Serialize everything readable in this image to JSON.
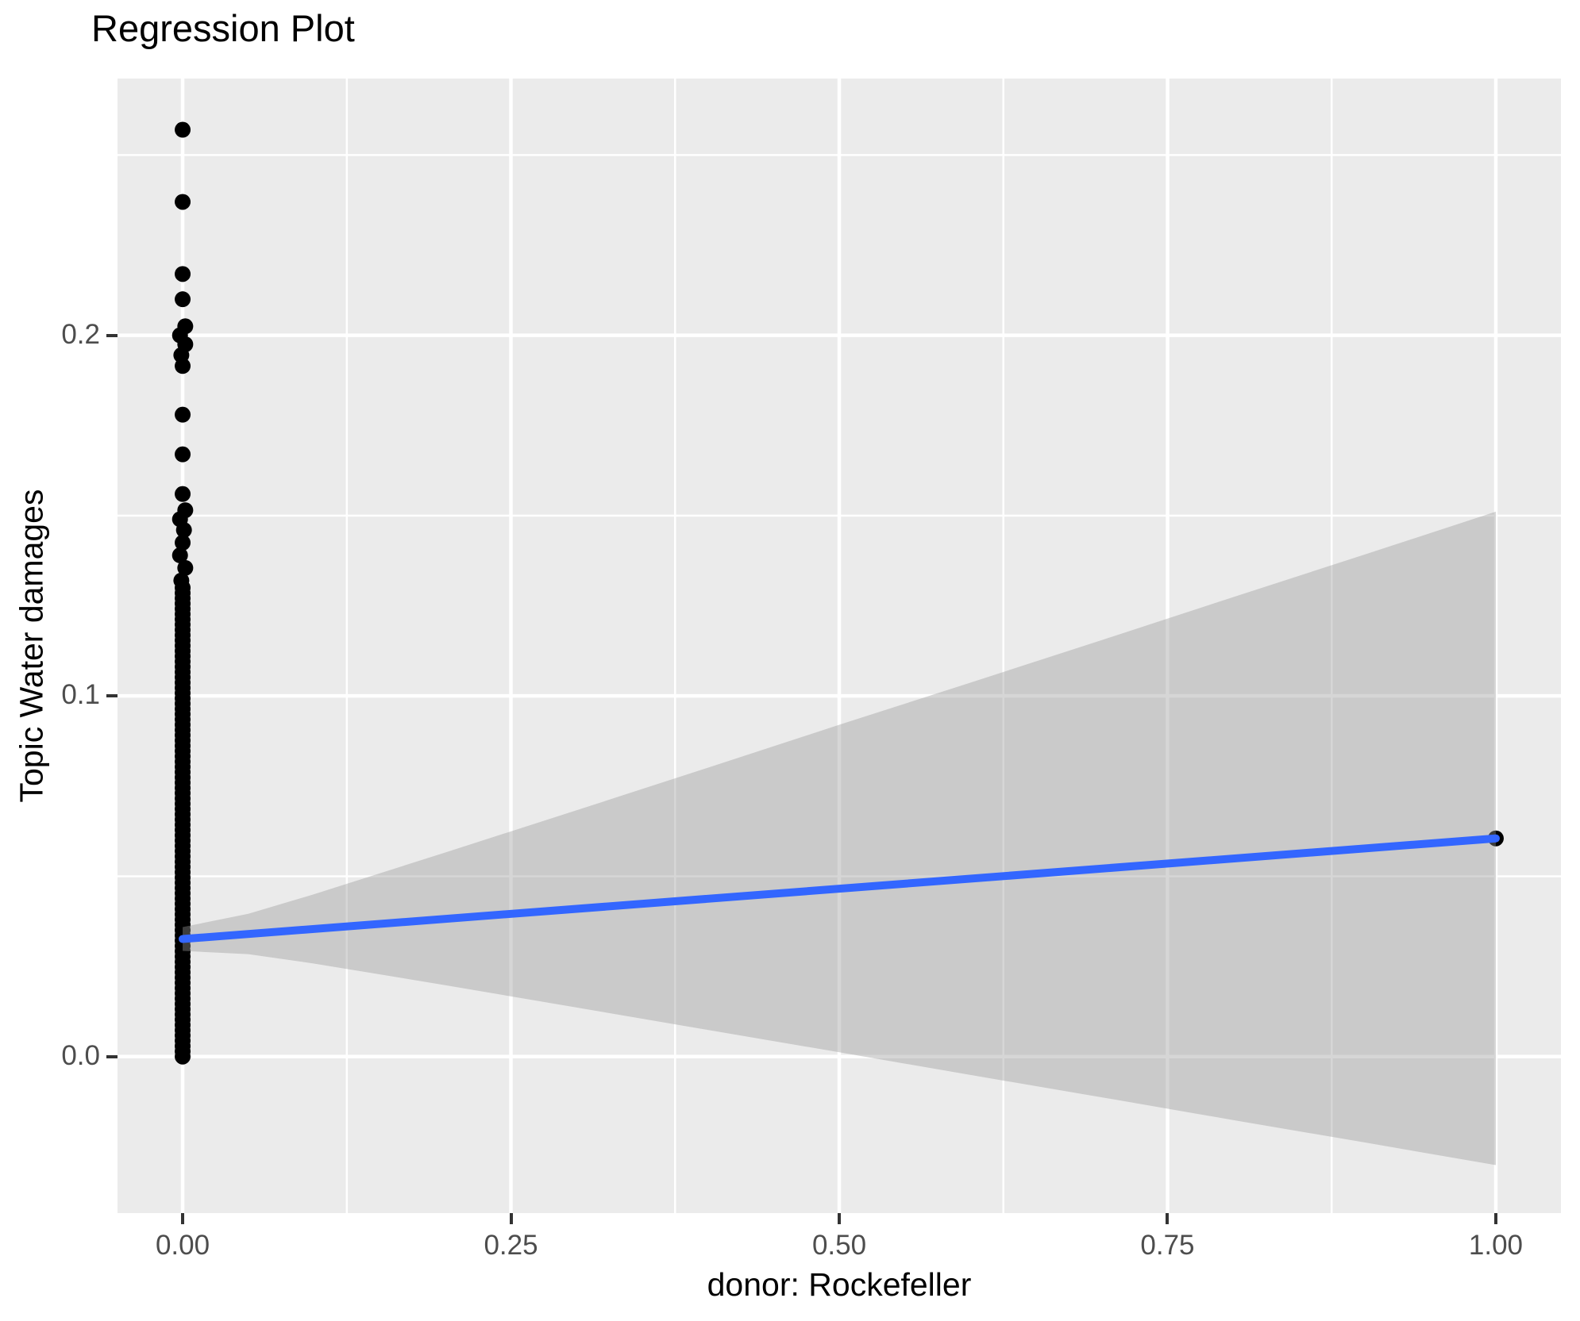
{
  "chart_data": {
    "type": "scatter",
    "title": "Regression Plot",
    "xlabel": "donor: Rockefeller",
    "ylabel": "Topic Water damages",
    "grid": "on",
    "panel_style": "ggplot-gray",
    "x_axis": {
      "limits": [
        -0.0496,
        1.0496
      ],
      "ticks": [
        {
          "value": 0.0,
          "label": "0.00"
        },
        {
          "value": 0.25,
          "label": "0.25"
        },
        {
          "value": 0.5,
          "label": "0.50"
        },
        {
          "value": 0.75,
          "label": "0.75"
        },
        {
          "value": 1.0,
          "label": "1.00"
        }
      ],
      "minor_ticks": [
        0.125,
        0.375,
        0.625,
        0.875
      ]
    },
    "y_axis": {
      "limits": [
        -0.0434,
        0.2712
      ],
      "ticks": [
        {
          "value": 0.0,
          "label": "0.0"
        },
        {
          "value": 0.1,
          "label": "0.1"
        },
        {
          "value": 0.2,
          "label": "0.2"
        }
      ],
      "minor_ticks": [
        0.05,
        0.15,
        0.25
      ]
    },
    "points_x0_sparse": [
      [
        0.0,
        0.257
      ],
      [
        0.0,
        0.237
      ],
      [
        0.0,
        0.217
      ],
      [
        0.0,
        0.21
      ],
      [
        0.002,
        0.2025
      ],
      [
        -0.002,
        0.2
      ],
      [
        0.002,
        0.1975
      ],
      [
        -0.001,
        0.1945
      ],
      [
        0.0,
        0.1915
      ],
      [
        0.0,
        0.178
      ],
      [
        0.0,
        0.167
      ],
      [
        0.0,
        0.156
      ],
      [
        0.002,
        0.1515
      ],
      [
        -0.002,
        0.149
      ],
      [
        0.001,
        0.146
      ],
      [
        0.0,
        0.1425
      ],
      [
        -0.002,
        0.139
      ],
      [
        0.002,
        0.1355
      ],
      [
        -0.001,
        0.132
      ]
    ],
    "points_x0_dense_column": {
      "x": 0.0,
      "y_min": 0.0,
      "y_max": 0.13,
      "count": 90
    },
    "point_x1": {
      "x": 1.0,
      "y": 0.0605
    },
    "regression_line": {
      "x": [
        0.0,
        1.0
      ],
      "y": [
        0.0326,
        0.0605
      ]
    },
    "confidence_ribbon": {
      "x": [
        0.0,
        0.05,
        0.1,
        0.2,
        0.3,
        0.4,
        0.5,
        0.6,
        0.7,
        0.8,
        0.9,
        1.0
      ],
      "upper": [
        0.0359,
        0.0396,
        0.045,
        0.0566,
        0.0683,
        0.0801,
        0.092,
        0.1037,
        0.1155,
        0.1274,
        0.1392,
        0.1511
      ],
      "lower": [
        0.0293,
        0.0284,
        0.0258,
        0.0198,
        0.0136,
        0.0074,
        0.0012,
        -0.0051,
        -0.0113,
        -0.0176,
        -0.0238,
        -0.0301
      ]
    },
    "colors": {
      "panel_background": "#EBEBEB",
      "gridline": "#FFFFFF",
      "point": "#000000",
      "regression_line": "#3366FF",
      "ribbon": "rgba(153,153,153,0.4)",
      "tick_label": "#4D4D4D",
      "tick_mark": "#333333",
      "text": "#000000"
    }
  }
}
